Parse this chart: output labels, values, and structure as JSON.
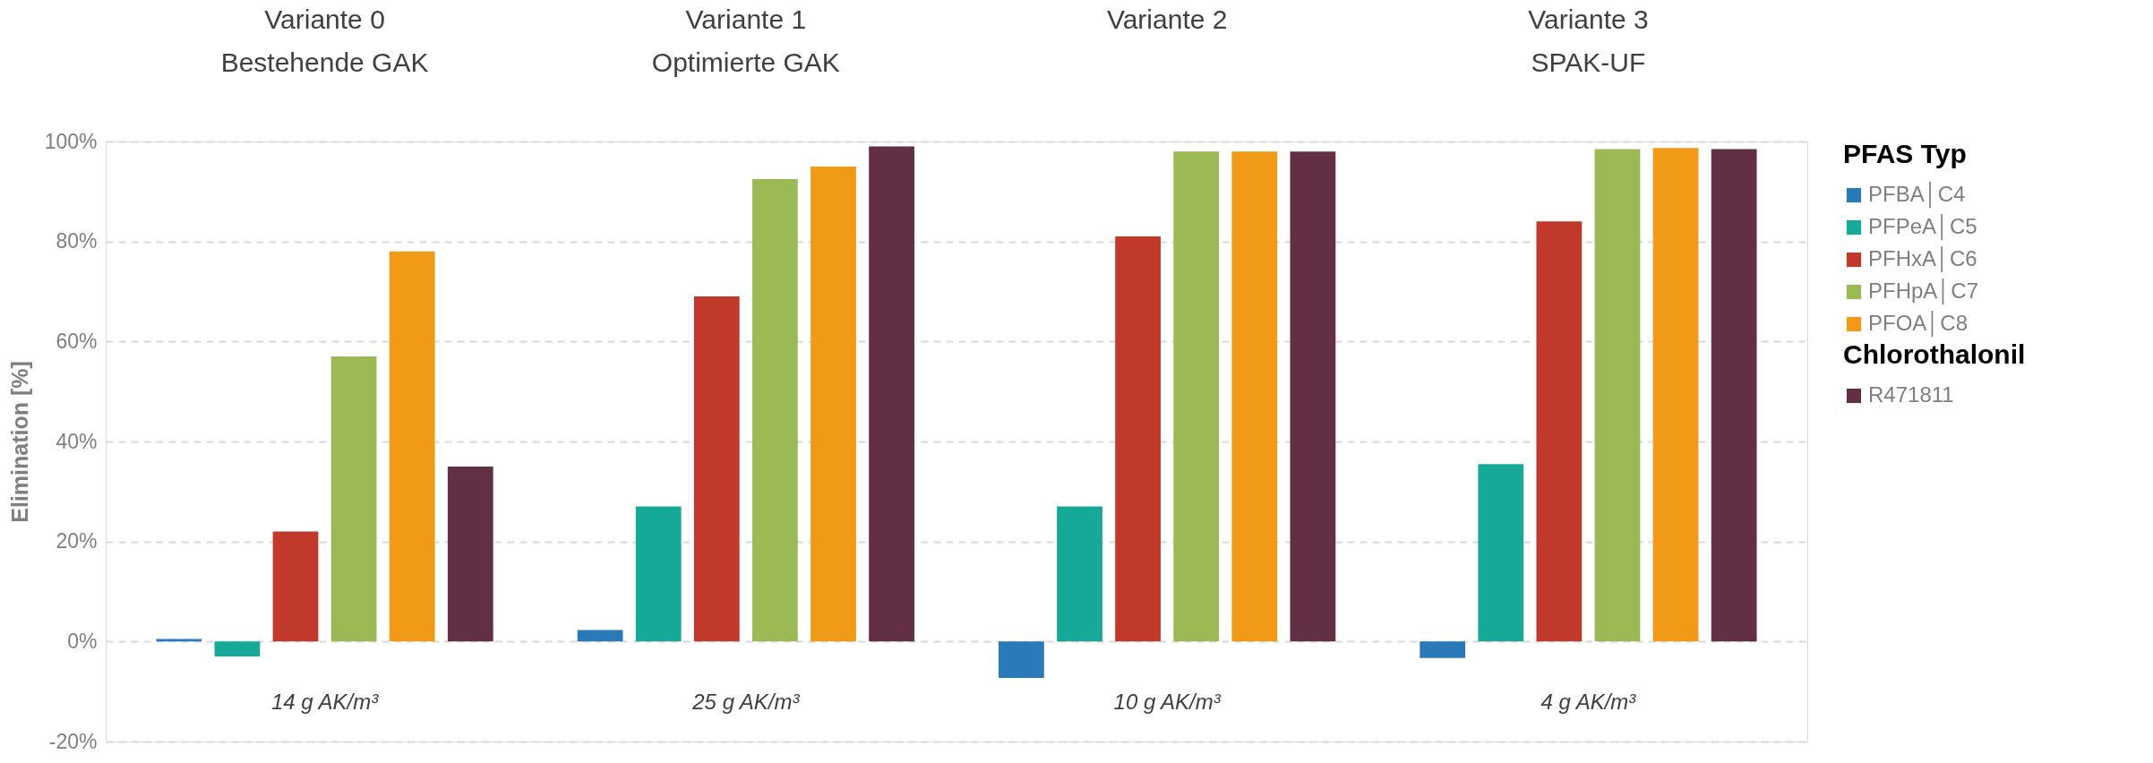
{
  "chart_data": {
    "type": "bar",
    "categories": [
      "14 g AK/m³",
      "25 g AK/m³",
      "10 g AK/m³",
      "4 g AK/m³"
    ],
    "series": [
      {
        "name": "PFBA│C4",
        "color": "#2a7ab9",
        "values": [
          0.5,
          2.3,
          -7.3,
          -3.3
        ]
      },
      {
        "name": "PFPeA│C5",
        "color": "#17a998",
        "values": [
          -3,
          27,
          27,
          35.5
        ]
      },
      {
        "name": "PFHxA│C6",
        "color": "#c0392b",
        "values": [
          22,
          69,
          81,
          84
        ]
      },
      {
        "name": "PFHpA│C7",
        "color": "#9bba55",
        "values": [
          57,
          92.5,
          98,
          98.5
        ]
      },
      {
        "name": "PFOA│C8",
        "color": "#f09a17",
        "values": [
          78,
          95,
          98,
          98.7
        ]
      },
      {
        "name": "R471811",
        "color": "#622f45",
        "values": [
          35,
          99,
          98,
          98.5
        ]
      }
    ],
    "ylabel": "Elimination [%]",
    "ylim": [
      -20,
      100
    ],
    "yticks": [
      {
        "value": -20,
        "label": "-20%"
      },
      {
        "value": 0,
        "label": "0%"
      },
      {
        "value": 20,
        "label": "20%"
      },
      {
        "value": 40,
        "label": "40%"
      },
      {
        "value": 60,
        "label": "60%"
      },
      {
        "value": 80,
        "label": "80%"
      },
      {
        "value": 100,
        "label": "100%"
      }
    ],
    "grid": "y",
    "legend": "right",
    "legend_title": "PFAS Typ",
    "annotations": [
      "Variante 0\nBestehende GAK",
      "Variante 1\nOptimierte GAK",
      "Variante 2",
      "Variante 3\nSPAK-UF",
      "Chlorothalonil"
    ]
  }
}
